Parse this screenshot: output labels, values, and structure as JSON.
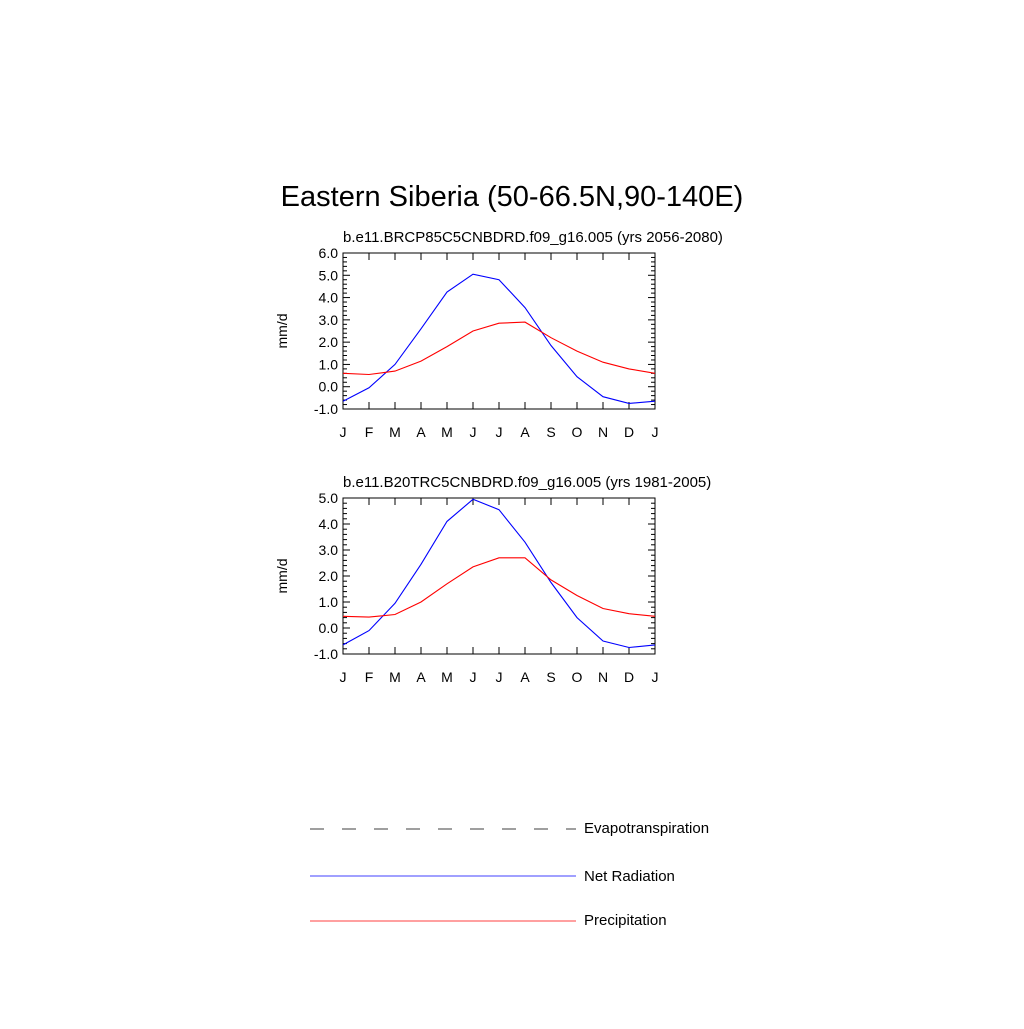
{
  "figure": {
    "title": "Eastern Siberia (50-66.5N,90-140E)"
  },
  "colors": {
    "net_radiation": "#0000ff",
    "precipitation": "#ff0000",
    "evapotranspiration": "#000000",
    "frame": "#000000"
  },
  "legend": {
    "items": [
      {
        "label": "Evapotranspiration",
        "style": "dashed",
        "color": "#000000"
      },
      {
        "label": "Net Radiation",
        "style": "solid",
        "color": "#0000ff"
      },
      {
        "label": "Precipitation",
        "style": "solid",
        "color": "#ff0000"
      }
    ]
  },
  "chart_data": [
    {
      "type": "line",
      "title": "b.e11.BRCP85C5CNBDRD.f09_g16.005 (yrs 2056-2080)",
      "ylabel": "mm/d",
      "xlabel": "",
      "categories": [
        "J",
        "F",
        "M",
        "A",
        "M",
        "J",
        "J",
        "A",
        "S",
        "O",
        "N",
        "D",
        "J"
      ],
      "ylim": [
        -1.0,
        6.0
      ],
      "yticks": [
        "-1.0",
        "0.0",
        "1.0",
        "2.0",
        "3.0",
        "4.0",
        "5.0",
        "6.0"
      ],
      "series": [
        {
          "name": "Net Radiation",
          "color": "#0000ff",
          "values": [
            -0.65,
            -0.05,
            1.0,
            2.6,
            4.25,
            5.05,
            4.8,
            3.55,
            1.85,
            0.45,
            -0.45,
            -0.75,
            -0.65
          ]
        },
        {
          "name": "Precipitation",
          "color": "#ff0000",
          "values": [
            0.6,
            0.55,
            0.7,
            1.15,
            1.8,
            2.5,
            2.85,
            2.9,
            2.2,
            1.6,
            1.1,
            0.8,
            0.6
          ]
        }
      ]
    },
    {
      "type": "line",
      "title": "b.e11.B20TRC5CNBDRD.f09_g16.005 (yrs 1981-2005)",
      "ylabel": "mm/d",
      "xlabel": "",
      "categories": [
        "J",
        "F",
        "M",
        "A",
        "M",
        "J",
        "J",
        "A",
        "S",
        "O",
        "N",
        "D",
        "J"
      ],
      "ylim": [
        -1.0,
        5.0
      ],
      "yticks": [
        "-1.0",
        "0.0",
        "1.0",
        "2.0",
        "3.0",
        "4.0",
        "5.0"
      ],
      "series": [
        {
          "name": "Net Radiation",
          "color": "#0000ff",
          "values": [
            -0.65,
            -0.1,
            0.95,
            2.45,
            4.1,
            4.95,
            4.55,
            3.3,
            1.75,
            0.4,
            -0.5,
            -0.75,
            -0.65
          ]
        },
        {
          "name": "Precipitation",
          "color": "#ff0000",
          "values": [
            0.45,
            0.42,
            0.52,
            1.0,
            1.7,
            2.35,
            2.7,
            2.7,
            1.85,
            1.25,
            0.75,
            0.55,
            0.45
          ]
        }
      ]
    }
  ]
}
